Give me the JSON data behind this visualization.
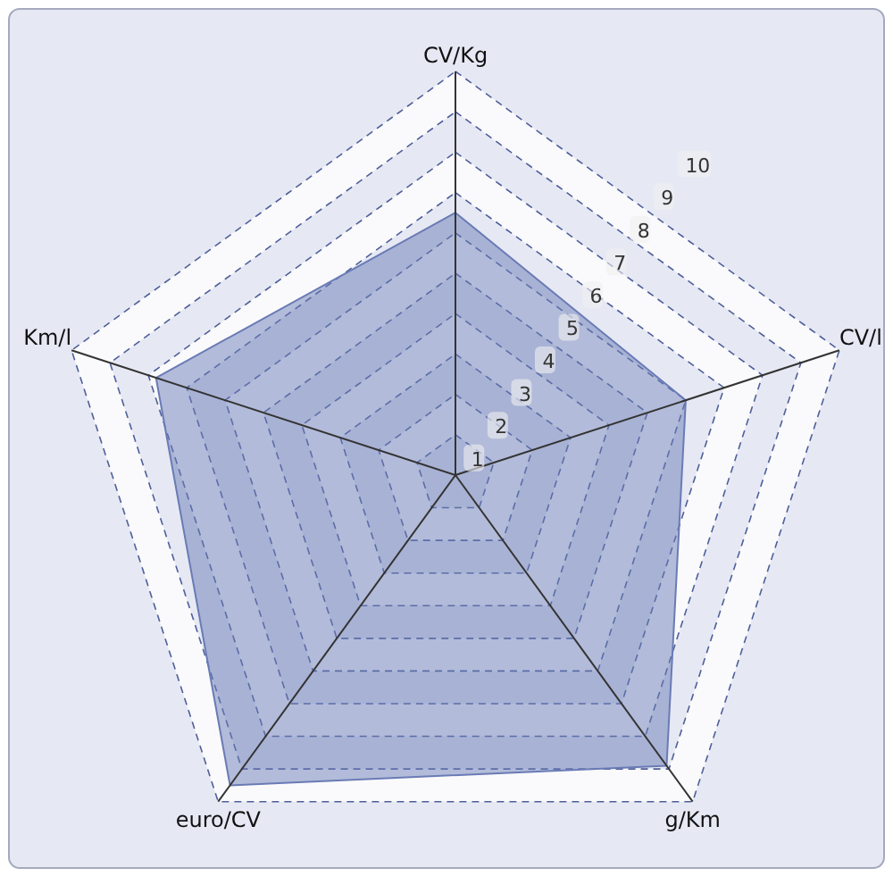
{
  "chart_data": {
    "type": "radar",
    "categories": [
      "CV/Kg",
      "CV/l",
      "g/Km",
      "euro/CV",
      "Km/l"
    ],
    "series": [
      {
        "color": "#6a7bb5",
        "values": [
          6.5,
          6.0,
          8.9,
          9.5,
          7.8
        ]
      }
    ],
    "ylim": [
      0,
      10
    ],
    "yticks": [
      1,
      2,
      3,
      4,
      5,
      6,
      7,
      8,
      9,
      10
    ],
    "grid": true
  }
}
